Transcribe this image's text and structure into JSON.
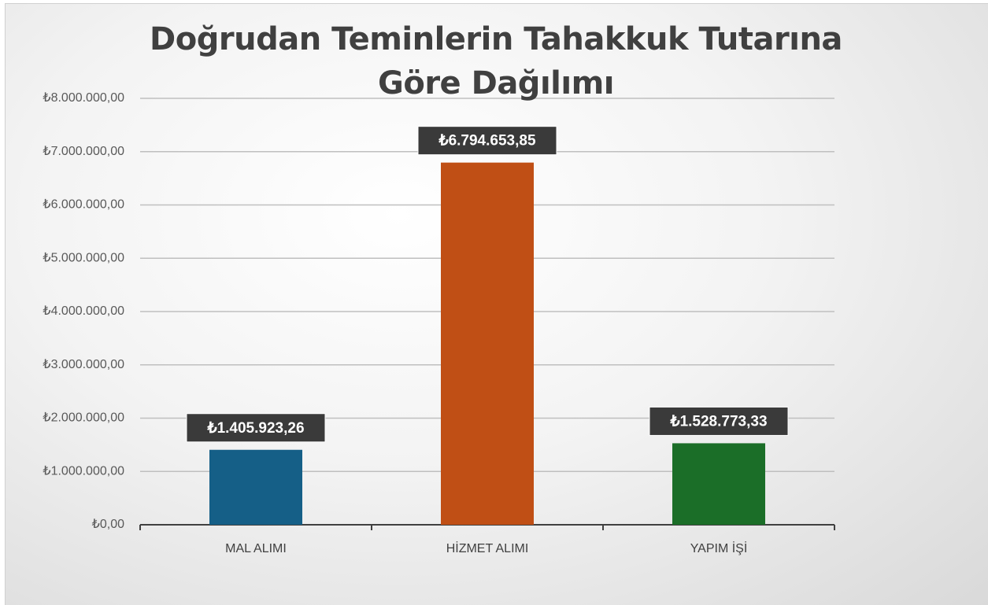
{
  "chart_data": {
    "type": "bar",
    "title": "Doğrudan Teminlerin Tahakkuk Tutarına Göre Dağılımı",
    "categories": [
      "MAL ALIMI",
      "HİZMET ALIMI",
      "YAPIM İŞİ"
    ],
    "values": [
      1405923.26,
      6794653.85,
      1528773.33
    ],
    "value_labels": [
      "₺1.405.923,26",
      "₺6.794.653,85",
      "₺1.528.773,33"
    ],
    "colors": [
      "#155f87",
      "#c04f15",
      "#1b6e28"
    ],
    "ylim": [
      0,
      8000000
    ],
    "yticks": [
      {
        "value": 0,
        "label": "₺0,00"
      },
      {
        "value": 1000000,
        "label": "₺1.000.000,00"
      },
      {
        "value": 2000000,
        "label": "₺2.000.000,00"
      },
      {
        "value": 3000000,
        "label": "₺3.000.000,00"
      },
      {
        "value": 4000000,
        "label": "₺4.000.000,00"
      },
      {
        "value": 5000000,
        "label": "₺5.000.000,00"
      },
      {
        "value": 6000000,
        "label": "₺6.000.000,00"
      },
      {
        "value": 7000000,
        "label": "₺7.000.000,00"
      },
      {
        "value": 8000000,
        "label": "₺8.000.000,00"
      }
    ],
    "grid": true
  }
}
